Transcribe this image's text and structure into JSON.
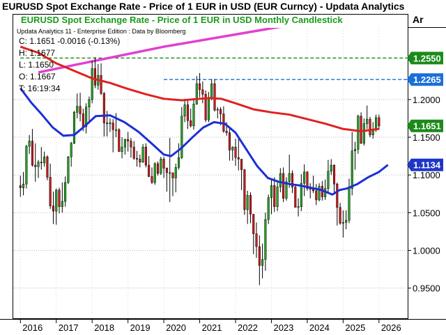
{
  "header": {
    "title": "EURUSD Spot Exchange Rate - Price of 1 EUR in USD (EUR Curncy) -  Updata Analytics",
    "axis_header": "Ar"
  },
  "chart_data": {
    "type": "candlestick",
    "title": "EURUSD Spot Exchange Rate - Price of 1 EUR in USD Monthly Candlestick",
    "subtitle": "Updata Analytics 11 - Enterprise Edition : Data by Bloomberg",
    "info_box": {
      "close": "C: 1.1651  -0.0016 (-0.13%)",
      "high": "H: 1.1677",
      "low": "L: 1.1650",
      "open": "O: 1.1667",
      "time": "T: 16:19:34"
    },
    "x_axis_labels": [
      "2016",
      "2017",
      "2018",
      "2019",
      "2020",
      "2021",
      "2022",
      "2023",
      "2024",
      "2025",
      "2026"
    ],
    "y_axis_ticks": [
      "0.9500",
      "1.0000",
      "1.0500",
      "1.1000",
      "1.1500",
      "1.2000"
    ],
    "ylim": [
      0.91,
      1.295
    ],
    "price_flags": [
      {
        "label": "1.2550",
        "value": 1.255,
        "color": "#1b8a1b"
      },
      {
        "label": "1.2265",
        "value": 1.2265,
        "color": "#1b6fd8"
      },
      {
        "label": "1.1651",
        "value": 1.1651,
        "color": "#1b8a1b"
      },
      {
        "label": "1.1134",
        "value": 1.1134,
        "color": "#1e36c8"
      }
    ],
    "horizontal_levels": [
      {
        "value": 1.255,
        "color": "#1b8a1b",
        "style": "dashed",
        "x_start_year": 2016.0
      },
      {
        "value": 1.2265,
        "color": "#1b6fd8",
        "style": "dashed",
        "x_start_year": 2020.0
      }
    ],
    "trendline": {
      "color": "#e040d0",
      "points": [
        [
          2016.5,
          1.236
        ],
        [
          2020.0,
          1.27
        ],
        [
          2026.4,
          1.322
        ]
      ]
    },
    "candles": [
      {
        "t": 2016.0,
        "o": 1.086,
        "h": 1.099,
        "l": 1.071,
        "c": 1.083
      },
      {
        "t": 2016.083,
        "o": 1.083,
        "h": 1.104,
        "l": 1.073,
        "c": 1.088
      },
      {
        "t": 2016.167,
        "o": 1.088,
        "h": 1.14,
        "l": 1.082,
        "c": 1.138
      },
      {
        "t": 2016.25,
        "o": 1.138,
        "h": 1.153,
        "l": 1.128,
        "c": 1.145
      },
      {
        "t": 2016.333,
        "o": 1.145,
        "h": 1.161,
        "l": 1.111,
        "c": 1.113
      },
      {
        "t": 2016.417,
        "o": 1.113,
        "h": 1.142,
        "l": 1.091,
        "c": 1.111
      },
      {
        "t": 2016.5,
        "o": 1.111,
        "h": 1.12,
        "l": 1.096,
        "c": 1.117
      },
      {
        "t": 2016.583,
        "o": 1.117,
        "h": 1.137,
        "l": 1.107,
        "c": 1.116
      },
      {
        "t": 2016.667,
        "o": 1.116,
        "h": 1.131,
        "l": 1.111,
        "c": 1.124
      },
      {
        "t": 2016.75,
        "o": 1.124,
        "h": 1.126,
        "l": 1.093,
        "c": 1.097
      },
      {
        "t": 2016.833,
        "o": 1.097,
        "h": 1.115,
        "l": 1.055,
        "c": 1.059
      },
      {
        "t": 2016.917,
        "o": 1.059,
        "h": 1.078,
        "l": 1.035,
        "c": 1.052
      },
      {
        "t": 2017.0,
        "o": 1.052,
        "h": 1.082,
        "l": 1.034,
        "c": 1.08
      },
      {
        "t": 2017.083,
        "o": 1.08,
        "h": 1.083,
        "l": 1.049,
        "c": 1.058
      },
      {
        "t": 2017.167,
        "o": 1.058,
        "h": 1.09,
        "l": 1.05,
        "c": 1.065
      },
      {
        "t": 2017.25,
        "o": 1.065,
        "h": 1.098,
        "l": 1.058,
        "c": 1.09
      },
      {
        "t": 2017.333,
        "o": 1.09,
        "h": 1.125,
        "l": 1.088,
        "c": 1.124
      },
      {
        "t": 2017.417,
        "o": 1.124,
        "h": 1.144,
        "l": 1.111,
        "c": 1.142
      },
      {
        "t": 2017.5,
        "o": 1.142,
        "h": 1.185,
        "l": 1.141,
        "c": 1.183
      },
      {
        "t": 2017.583,
        "o": 1.183,
        "h": 1.208,
        "l": 1.175,
        "c": 1.191
      },
      {
        "t": 2017.667,
        "o": 1.191,
        "h": 1.209,
        "l": 1.171,
        "c": 1.181
      },
      {
        "t": 2017.75,
        "o": 1.181,
        "h": 1.188,
        "l": 1.158,
        "c": 1.164
      },
      {
        "t": 2017.833,
        "o": 1.164,
        "h": 1.195,
        "l": 1.155,
        "c": 1.19
      },
      {
        "t": 2017.917,
        "o": 1.19,
        "h": 1.204,
        "l": 1.17,
        "c": 1.2
      },
      {
        "t": 2018.0,
        "o": 1.2,
        "h": 1.251,
        "l": 1.195,
        "c": 1.241
      },
      {
        "t": 2018.083,
        "o": 1.241,
        "h": 1.256,
        "l": 1.215,
        "c": 1.219
      },
      {
        "t": 2018.167,
        "o": 1.219,
        "h": 1.247,
        "l": 1.213,
        "c": 1.232
      },
      {
        "t": 2018.25,
        "o": 1.232,
        "h": 1.248,
        "l": 1.206,
        "c": 1.208
      },
      {
        "t": 2018.333,
        "o": 1.208,
        "h": 1.21,
        "l": 1.151,
        "c": 1.169
      },
      {
        "t": 2018.417,
        "o": 1.169,
        "h": 1.185,
        "l": 1.151,
        "c": 1.168
      },
      {
        "t": 2018.5,
        "o": 1.168,
        "h": 1.175,
        "l": 1.157,
        "c": 1.169
      },
      {
        "t": 2018.583,
        "o": 1.169,
        "h": 1.174,
        "l": 1.13,
        "c": 1.16
      },
      {
        "t": 2018.667,
        "o": 1.16,
        "h": 1.182,
        "l": 1.15,
        "c": 1.16
      },
      {
        "t": 2018.75,
        "o": 1.16,
        "h": 1.162,
        "l": 1.132,
        "c": 1.131
      },
      {
        "t": 2018.833,
        "o": 1.131,
        "h": 1.15,
        "l": 1.122,
        "c": 1.137
      },
      {
        "t": 2018.917,
        "o": 1.137,
        "h": 1.148,
        "l": 1.127,
        "c": 1.147
      },
      {
        "t": 2019.0,
        "o": 1.147,
        "h": 1.157,
        "l": 1.131,
        "c": 1.145
      },
      {
        "t": 2019.083,
        "o": 1.145,
        "h": 1.149,
        "l": 1.123,
        "c": 1.137
      },
      {
        "t": 2019.167,
        "o": 1.137,
        "h": 1.145,
        "l": 1.12,
        "c": 1.122
      },
      {
        "t": 2019.25,
        "o": 1.122,
        "h": 1.132,
        "l": 1.111,
        "c": 1.121
      },
      {
        "t": 2019.333,
        "o": 1.121,
        "h": 1.127,
        "l": 1.11,
        "c": 1.117
      },
      {
        "t": 2019.417,
        "o": 1.117,
        "h": 1.141,
        "l": 1.116,
        "c": 1.137
      },
      {
        "t": 2019.5,
        "o": 1.137,
        "h": 1.142,
        "l": 1.11,
        "c": 1.113
      },
      {
        "t": 2019.583,
        "o": 1.113,
        "h": 1.125,
        "l": 1.097,
        "c": 1.098
      },
      {
        "t": 2019.667,
        "o": 1.098,
        "h": 1.11,
        "l": 1.088,
        "c": 1.09
      },
      {
        "t": 2019.75,
        "o": 1.09,
        "h": 1.117,
        "l": 1.087,
        "c": 1.115
      },
      {
        "t": 2019.833,
        "o": 1.115,
        "h": 1.118,
        "l": 1.099,
        "c": 1.102
      },
      {
        "t": 2019.917,
        "o": 1.102,
        "h": 1.124,
        "l": 1.1,
        "c": 1.121
      },
      {
        "t": 2020.0,
        "o": 1.121,
        "h": 1.124,
        "l": 1.096,
        "c": 1.109
      },
      {
        "t": 2020.083,
        "o": 1.109,
        "h": 1.11,
        "l": 1.078,
        "c": 1.103
      },
      {
        "t": 2020.167,
        "o": 1.103,
        "h": 1.149,
        "l": 1.064,
        "c": 1.103
      },
      {
        "t": 2020.25,
        "o": 1.103,
        "h": 1.102,
        "l": 1.072,
        "c": 1.096
      },
      {
        "t": 2020.333,
        "o": 1.096,
        "h": 1.115,
        "l": 1.077,
        "c": 1.11
      },
      {
        "t": 2020.417,
        "o": 1.11,
        "h": 1.142,
        "l": 1.107,
        "c": 1.123
      },
      {
        "t": 2020.5,
        "o": 1.123,
        "h": 1.19,
        "l": 1.121,
        "c": 1.178
      },
      {
        "t": 2020.583,
        "o": 1.178,
        "h": 1.201,
        "l": 1.17,
        "c": 1.193
      },
      {
        "t": 2020.667,
        "o": 1.193,
        "h": 1.201,
        "l": 1.161,
        "c": 1.172
      },
      {
        "t": 2020.75,
        "o": 1.172,
        "h": 1.188,
        "l": 1.163,
        "c": 1.165
      },
      {
        "t": 2020.833,
        "o": 1.165,
        "h": 1.2,
        "l": 1.16,
        "c": 1.194
      },
      {
        "t": 2020.917,
        "o": 1.194,
        "h": 1.231,
        "l": 1.193,
        "c": 1.221
      },
      {
        "t": 2021.0,
        "o": 1.221,
        "h": 1.235,
        "l": 1.203,
        "c": 1.213
      },
      {
        "t": 2021.083,
        "o": 1.213,
        "h": 1.224,
        "l": 1.195,
        "c": 1.207
      },
      {
        "t": 2021.167,
        "o": 1.207,
        "h": 1.212,
        "l": 1.17,
        "c": 1.173
      },
      {
        "t": 2021.25,
        "o": 1.173,
        "h": 1.21,
        "l": 1.17,
        "c": 1.202
      },
      {
        "t": 2021.333,
        "o": 1.202,
        "h": 1.227,
        "l": 1.199,
        "c": 1.221
      },
      {
        "t": 2021.417,
        "o": 1.221,
        "h": 1.227,
        "l": 1.184,
        "c": 1.186
      },
      {
        "t": 2021.5,
        "o": 1.186,
        "h": 1.19,
        "l": 1.175,
        "c": 1.187
      },
      {
        "t": 2021.583,
        "o": 1.187,
        "h": 1.19,
        "l": 1.166,
        "c": 1.181
      },
      {
        "t": 2021.667,
        "o": 1.181,
        "h": 1.191,
        "l": 1.156,
        "c": 1.158
      },
      {
        "t": 2021.75,
        "o": 1.158,
        "h": 1.17,
        "l": 1.152,
        "c": 1.156
      },
      {
        "t": 2021.833,
        "o": 1.156,
        "h": 1.162,
        "l": 1.119,
        "c": 1.133
      },
      {
        "t": 2021.917,
        "o": 1.133,
        "h": 1.138,
        "l": 1.119,
        "c": 1.137
      },
      {
        "t": 2022.0,
        "o": 1.137,
        "h": 1.148,
        "l": 1.112,
        "c": 1.123
      },
      {
        "t": 2022.083,
        "o": 1.123,
        "h": 1.149,
        "l": 1.106,
        "c": 1.121
      },
      {
        "t": 2022.167,
        "o": 1.121,
        "h": 1.118,
        "l": 1.08,
        "c": 1.107
      },
      {
        "t": 2022.25,
        "o": 1.107,
        "h": 1.108,
        "l": 1.047,
        "c": 1.054
      },
      {
        "t": 2022.333,
        "o": 1.054,
        "h": 1.079,
        "l": 1.035,
        "c": 1.073
      },
      {
        "t": 2022.417,
        "o": 1.073,
        "h": 1.077,
        "l": 1.036,
        "c": 1.048
      },
      {
        "t": 2022.5,
        "o": 1.048,
        "h": 1.048,
        "l": 0.995,
        "c": 1.022
      },
      {
        "t": 2022.583,
        "o": 1.022,
        "h": 1.037,
        "l": 0.99,
        "c": 1.005
      },
      {
        "t": 2022.667,
        "o": 1.005,
        "h": 1.02,
        "l": 0.954,
        "c": 0.98
      },
      {
        "t": 2022.75,
        "o": 0.98,
        "h": 1.009,
        "l": 0.963,
        "c": 0.988
      },
      {
        "t": 2022.833,
        "o": 0.988,
        "h": 1.05,
        "l": 0.973,
        "c": 1.041
      },
      {
        "t": 2022.917,
        "o": 1.041,
        "h": 1.074,
        "l": 1.035,
        "c": 1.07
      },
      {
        "t": 2023.0,
        "o": 1.07,
        "h": 1.093,
        "l": 1.048,
        "c": 1.086
      },
      {
        "t": 2023.083,
        "o": 1.086,
        "h": 1.097,
        "l": 1.051,
        "c": 1.058
      },
      {
        "t": 2023.167,
        "o": 1.058,
        "h": 1.093,
        "l": 1.052,
        "c": 1.084
      },
      {
        "t": 2023.25,
        "o": 1.084,
        "h": 1.109,
        "l": 1.077,
        "c": 1.102
      },
      {
        "t": 2023.333,
        "o": 1.102,
        "h": 1.11,
        "l": 1.064,
        "c": 1.069
      },
      {
        "t": 2023.417,
        "o": 1.069,
        "h": 1.097,
        "l": 1.066,
        "c": 1.091
      },
      {
        "t": 2023.5,
        "o": 1.091,
        "h": 1.127,
        "l": 1.083,
        "c": 1.102
      },
      {
        "t": 2023.583,
        "o": 1.102,
        "h": 1.106,
        "l": 1.076,
        "c": 1.084
      },
      {
        "t": 2023.667,
        "o": 1.084,
        "h": 1.088,
        "l": 1.057,
        "c": 1.057
      },
      {
        "t": 2023.75,
        "o": 1.057,
        "h": 1.069,
        "l": 1.045,
        "c": 1.058
      },
      {
        "t": 2023.833,
        "o": 1.058,
        "h": 1.101,
        "l": 1.052,
        "c": 1.089
      },
      {
        "t": 2023.917,
        "o": 1.089,
        "h": 1.114,
        "l": 1.072,
        "c": 1.104
      },
      {
        "t": 2024.0,
        "o": 1.104,
        "h": 1.105,
        "l": 1.079,
        "c": 1.082
      },
      {
        "t": 2024.083,
        "o": 1.082,
        "h": 1.089,
        "l": 1.069,
        "c": 1.081
      },
      {
        "t": 2024.167,
        "o": 1.081,
        "h": 1.099,
        "l": 1.076,
        "c": 1.079
      },
      {
        "t": 2024.25,
        "o": 1.079,
        "h": 1.088,
        "l": 1.06,
        "c": 1.067
      },
      {
        "t": 2024.333,
        "o": 1.067,
        "h": 1.089,
        "l": 1.065,
        "c": 1.085
      },
      {
        "t": 2024.417,
        "o": 1.085,
        "h": 1.092,
        "l": 1.066,
        "c": 1.071
      },
      {
        "t": 2024.5,
        "o": 1.071,
        "h": 1.094,
        "l": 1.067,
        "c": 1.082
      },
      {
        "t": 2024.583,
        "o": 1.082,
        "h": 1.12,
        "l": 1.077,
        "c": 1.105
      },
      {
        "t": 2024.667,
        "o": 1.105,
        "h": 1.121,
        "l": 1.1,
        "c": 1.113
      },
      {
        "t": 2024.75,
        "o": 1.113,
        "h": 1.114,
        "l": 1.076,
        "c": 1.088
      },
      {
        "t": 2024.833,
        "o": 1.088,
        "h": 1.09,
        "l": 1.033,
        "c": 1.057
      },
      {
        "t": 2024.917,
        "o": 1.057,
        "h": 1.063,
        "l": 1.034,
        "c": 1.036
      },
      {
        "t": 2025.0,
        "o": 1.036,
        "h": 1.053,
        "l": 1.017,
        "c": 1.037
      },
      {
        "t": 2025.083,
        "o": 1.037,
        "h": 1.053,
        "l": 1.028,
        "c": 1.04
      },
      {
        "t": 2025.167,
        "o": 1.04,
        "h": 1.095,
        "l": 1.036,
        "c": 1.082
      },
      {
        "t": 2025.25,
        "o": 1.082,
        "h": 1.157,
        "l": 1.073,
        "c": 1.132
      },
      {
        "t": 2025.333,
        "o": 1.132,
        "h": 1.144,
        "l": 1.107,
        "c": 1.134
      },
      {
        "t": 2025.417,
        "o": 1.134,
        "h": 1.18,
        "l": 1.128,
        "c": 1.178
      },
      {
        "t": 2025.5,
        "o": 1.178,
        "h": 1.183,
        "l": 1.141,
        "c": 1.142
      },
      {
        "t": 2025.583,
        "o": 1.142,
        "h": 1.175,
        "l": 1.139,
        "c": 1.168
      },
      {
        "t": 2025.667,
        "o": 1.168,
        "h": 1.192,
        "l": 1.161,
        "c": 1.174
      },
      {
        "t": 2025.75,
        "o": 1.174,
        "h": 1.177,
        "l": 1.15,
        "c": 1.153
      },
      {
        "t": 2025.833,
        "o": 1.153,
        "h": 1.17,
        "l": 1.148,
        "c": 1.16
      },
      {
        "t": 2025.917,
        "o": 1.16,
        "h": 1.18,
        "l": 1.157,
        "c": 1.176
      },
      {
        "t": 2026.0,
        "o": 1.176,
        "h": 1.18,
        "l": 1.16,
        "c": 1.165
      }
    ],
    "moving_averages": [
      {
        "color": "#e02020",
        "points": [
          [
            2016.0,
            1.27
          ],
          [
            2016.5,
            1.262
          ],
          [
            2017.0,
            1.248
          ],
          [
            2017.5,
            1.238
          ],
          [
            2018.0,
            1.228
          ],
          [
            2018.5,
            1.222
          ],
          [
            2019.0,
            1.214
          ],
          [
            2019.5,
            1.207
          ],
          [
            2020.0,
            1.201
          ],
          [
            2020.5,
            1.199
          ],
          [
            2021.0,
            1.201
          ],
          [
            2021.3,
            1.202
          ],
          [
            2021.6,
            1.201
          ],
          [
            2022.0,
            1.195
          ],
          [
            2022.5,
            1.187
          ],
          [
            2023.0,
            1.183
          ],
          [
            2023.5,
            1.18
          ],
          [
            2024.0,
            1.174
          ],
          [
            2024.5,
            1.168
          ],
          [
            2025.0,
            1.161
          ],
          [
            2025.5,
            1.158
          ],
          [
            2026.0,
            1.161
          ]
        ]
      },
      {
        "color": "#1c2fd6",
        "points": [
          [
            2016.0,
            1.215
          ],
          [
            2016.3,
            1.196
          ],
          [
            2016.6,
            1.18
          ],
          [
            2016.9,
            1.163
          ],
          [
            2017.2,
            1.152
          ],
          [
            2017.5,
            1.153
          ],
          [
            2017.8,
            1.165
          ],
          [
            2018.1,
            1.178
          ],
          [
            2018.5,
            1.179
          ],
          [
            2018.9,
            1.17
          ],
          [
            2019.3,
            1.157
          ],
          [
            2019.7,
            1.14
          ],
          [
            2020.0,
            1.127
          ],
          [
            2020.2,
            1.125
          ],
          [
            2020.5,
            1.136
          ],
          [
            2020.8,
            1.15
          ],
          [
            2021.1,
            1.163
          ],
          [
            2021.4,
            1.17
          ],
          [
            2021.7,
            1.168
          ],
          [
            2022.0,
            1.156
          ],
          [
            2022.3,
            1.134
          ],
          [
            2022.6,
            1.112
          ],
          [
            2022.9,
            1.096
          ],
          [
            2023.2,
            1.091
          ],
          [
            2023.5,
            1.088
          ],
          [
            2023.8,
            1.086
          ],
          [
            2024.1,
            1.083
          ],
          [
            2024.4,
            1.08
          ],
          [
            2024.7,
            1.074
          ],
          [
            2024.9,
            1.08
          ],
          [
            2025.1,
            1.082
          ],
          [
            2025.4,
            1.088
          ],
          [
            2025.7,
            1.097
          ],
          [
            2026.0,
            1.104
          ],
          [
            2026.25,
            1.1134
          ]
        ]
      }
    ]
  }
}
